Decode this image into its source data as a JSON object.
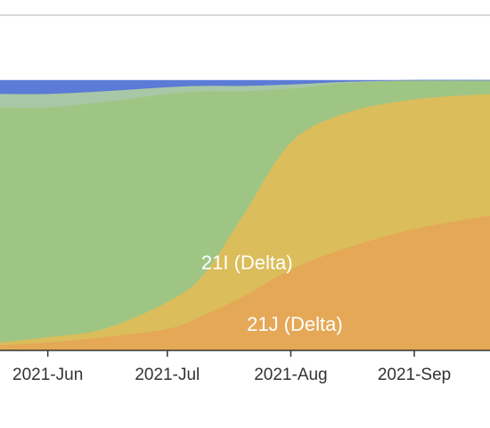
{
  "chart_data": {
    "type": "area",
    "stacking": "percent",
    "x_axis": {
      "tick_labels": [
        "2021-Jun",
        "2021-Jul",
        "2021-Aug",
        "2021-Sep"
      ],
      "tick_dates": [
        "2021-06-01",
        "2021-07-01",
        "2021-08-01",
        "2021-09-01"
      ],
      "range": [
        "2021-05-20",
        "2021-09-20"
      ]
    },
    "y_axis": {
      "range": [
        0,
        1
      ],
      "visible": false
    },
    "grid": false,
    "legend": "none",
    "annotations": [
      {
        "text": "21I (Delta)",
        "series": "21I (Delta)"
      },
      {
        "text": "21J (Delta)",
        "series": "21J (Delta)"
      }
    ],
    "dates": [
      "2021-05-20",
      "2021-06-01",
      "2021-06-15",
      "2021-07-01",
      "2021-07-10",
      "2021-07-20",
      "2021-08-01",
      "2021-08-15",
      "2021-09-01",
      "2021-09-20"
    ],
    "series": [
      {
        "name": "21J (Delta)",
        "color": "#e4a857",
        "values": [
          0.02,
          0.03,
          0.05,
          0.08,
          0.13,
          0.2,
          0.3,
          0.38,
          0.45,
          0.5
        ]
      },
      {
        "name": "21I (Delta)",
        "color": "#dbbd5b",
        "values": [
          0.01,
          0.02,
          0.03,
          0.1,
          0.15,
          0.3,
          0.47,
          0.5,
          0.48,
          0.45
        ]
      },
      {
        "color": "#9fc584",
        "values": [
          0.87,
          0.85,
          0.84,
          0.77,
          0.68,
          0.46,
          0.2,
          0.11,
          0.07,
          0.05
        ]
      },
      {
        "color": "#a8c7a6",
        "values": [
          0.05,
          0.05,
          0.04,
          0.025,
          0.02,
          0.02,
          0.015,
          0.005,
          0.0,
          0.0
        ]
      },
      {
        "color": "#5b7bd6",
        "values": [
          0.05,
          0.05,
          0.04,
          0.025,
          0.02,
          0.02,
          0.015,
          0.005,
          0.0,
          0.0
        ]
      }
    ],
    "colors": {
      "axis": "#333333",
      "top_border": "#cccccc",
      "annotation_text": "#ffffff"
    }
  }
}
